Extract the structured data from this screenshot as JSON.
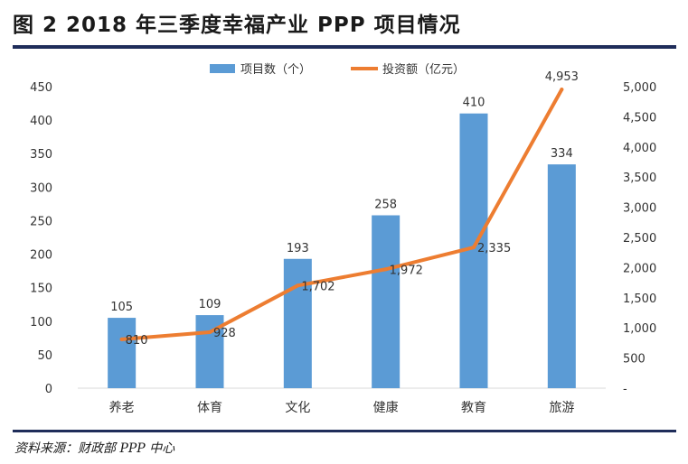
{
  "header": {
    "title": "图 2 2018 年三季度幸福产业 PPP 项目情况"
  },
  "footer": {
    "source": "资料来源：财政部 PPP 中心"
  },
  "colors": {
    "bar": "#5b9bd5",
    "line": "#ed7d31",
    "rule": "#1f2d5a",
    "text": "#333333"
  },
  "chart_data": {
    "type": "bar",
    "title": "",
    "categories": [
      "养老",
      "体育",
      "文化",
      "健康",
      "教育",
      "旅游"
    ],
    "series": [
      {
        "name": "项目数（个）",
        "type": "bar",
        "axis": "left",
        "values": [
          105,
          109,
          193,
          258,
          410,
          334
        ],
        "labels": [
          "105",
          "109",
          "193",
          "258",
          "410",
          "334"
        ]
      },
      {
        "name": "投资额（亿元）",
        "type": "line",
        "axis": "right",
        "values": [
          810,
          928,
          1702,
          1972,
          2335,
          4953
        ],
        "labels": [
          "810",
          "928",
          "1,702",
          "1,972",
          "2,335",
          "4,953"
        ]
      }
    ],
    "left_axis": {
      "ylim": [
        0,
        450
      ],
      "ticks": [
        "0",
        "50",
        "100",
        "150",
        "200",
        "250",
        "300",
        "350",
        "400",
        "450"
      ]
    },
    "right_axis": {
      "ylim": [
        0,
        5000
      ],
      "ticks": [
        "-",
        "500",
        "1,000",
        "1,500",
        "2,000",
        "2,500",
        "3,000",
        "3,500",
        "4,000",
        "4,500",
        "5,000"
      ]
    },
    "legend": {
      "position": "top"
    },
    "grid": false
  }
}
